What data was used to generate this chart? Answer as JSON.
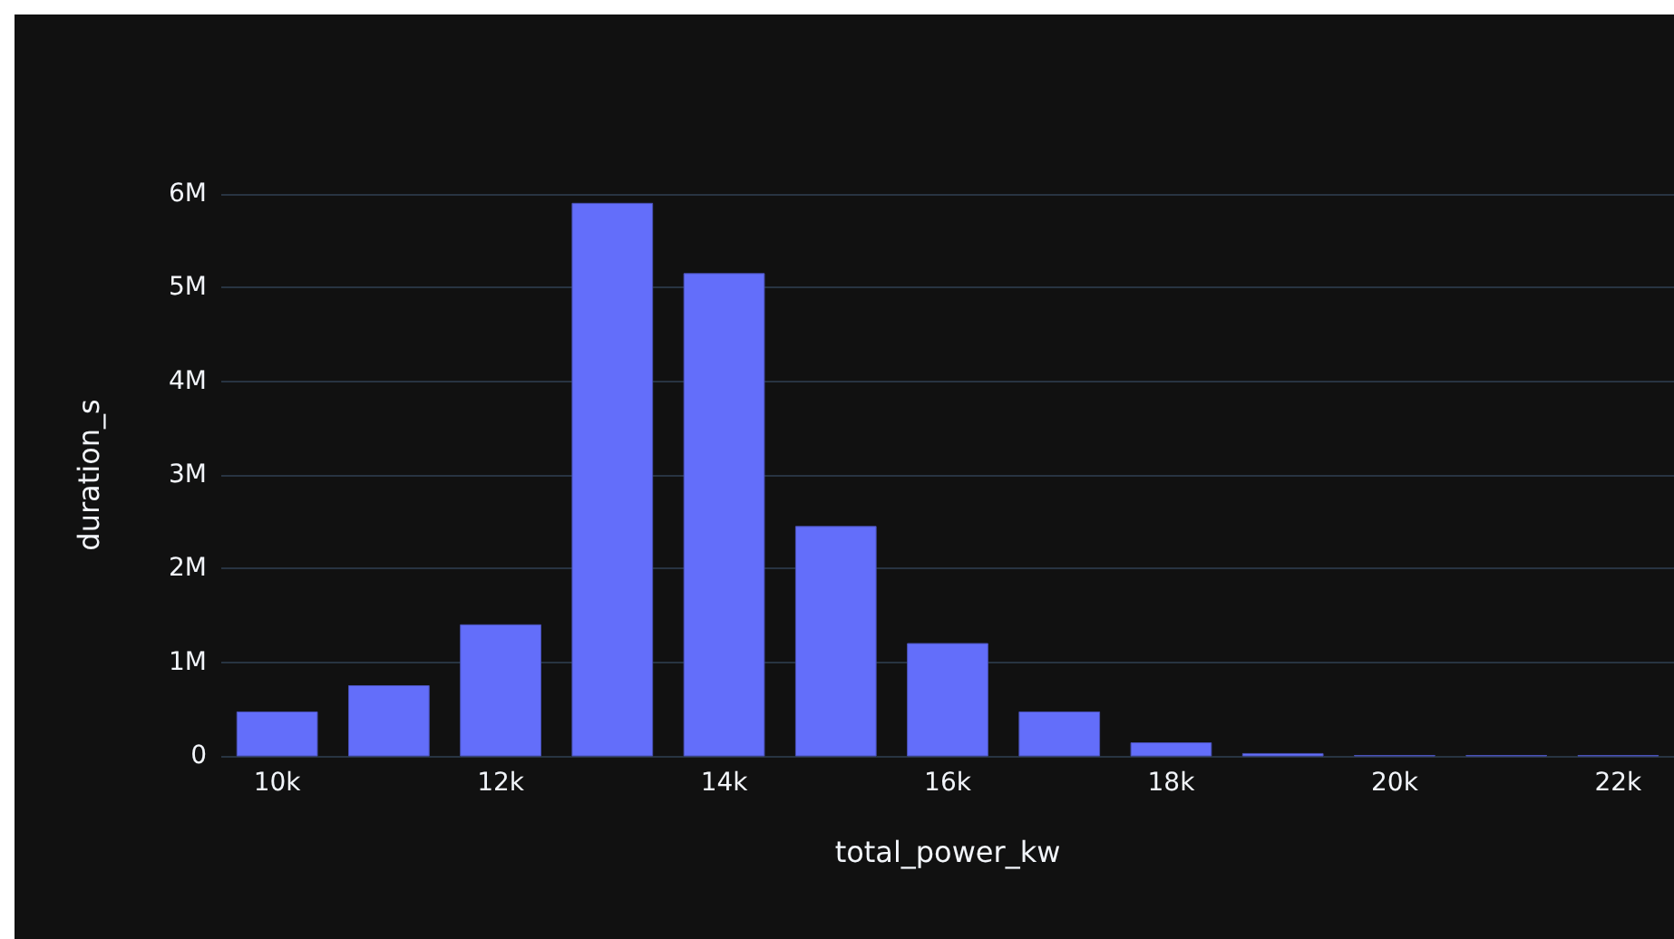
{
  "chart_data": {
    "type": "histogram",
    "xlabel": "total_power_kw",
    "ylabel": "duration_s",
    "bins": [
      9500,
      10500,
      11500,
      12500,
      13500,
      14500,
      15500,
      16500,
      17500,
      18500,
      19500,
      20500,
      21500,
      22500
    ],
    "values": [
      470000,
      750000,
      1400000,
      5900000,
      5150000,
      2450000,
      1200000,
      470000,
      140000,
      25000,
      5000,
      5000,
      5000
    ],
    "color": "#636efa",
    "xlim": [
      9500,
      22500
    ],
    "xticks": [
      {
        "value": 10000,
        "label": "10k"
      },
      {
        "value": 12000,
        "label": "12k"
      },
      {
        "value": 14000,
        "label": "14k"
      },
      {
        "value": 16000,
        "label": "16k"
      },
      {
        "value": 18000,
        "label": "18k"
      },
      {
        "value": 20000,
        "label": "20k"
      },
      {
        "value": 22000,
        "label": "22k"
      }
    ],
    "ylim": [
      0,
      6000000
    ],
    "yticks": [
      0,
      {
        "value": 1000000,
        "label": "1M"
      },
      {
        "value": 2000000,
        "label": "2M"
      },
      {
        "value": 3000000,
        "label": "3M"
      },
      {
        "value": 4000000,
        "label": "4M"
      },
      {
        "value": 5000000,
        "label": "5M"
      },
      {
        "value": 6000000,
        "label": "6M"
      }
    ],
    "grid": "y"
  }
}
